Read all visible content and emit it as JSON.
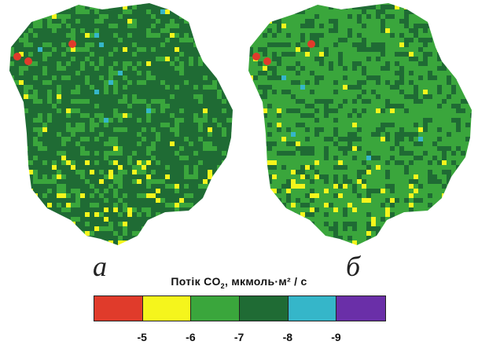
{
  "panels": [
    {
      "letter": "а",
      "dominant_color": "#1f6b34",
      "secondary_color": "#3aa63c"
    },
    {
      "letter": "б",
      "dominant_color": "#3aa63c",
      "secondary_color": "#1f6b34"
    }
  ],
  "legend": {
    "title_prefix": "Потік CO",
    "title_sub": "2",
    "title_suffix": ",  мкмоль·м² / с",
    "colors": [
      "#e03b2b",
      "#f5f51c",
      "#3aa63c",
      "#1f6b34",
      "#35b6c9",
      "#6a2fa8"
    ],
    "ticks": [
      "-5",
      "-6",
      "-7",
      "-8",
      "-9"
    ]
  }
}
